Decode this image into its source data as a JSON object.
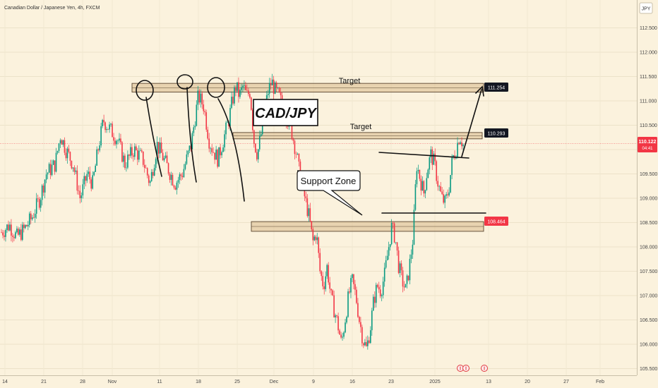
{
  "chart_data": {
    "type": "candlestick",
    "title": "Canadian Dollar / Japanese Yen, 4h, FXCM",
    "currency_badge": "JPY",
    "y_ticks": [
      "112.500",
      "112.000",
      "111.500",
      "111.000",
      "110.500",
      "110.000",
      "109.500",
      "109.000",
      "108.500",
      "108.000",
      "107.500",
      "107.000",
      "106.500",
      "106.000",
      "105.500"
    ],
    "y_range": [
      105.35,
      112.75
    ],
    "x_ticks": [
      "14",
      "21",
      "28",
      "Nov",
      "11",
      "18",
      "25",
      "Dec",
      "9",
      "16",
      "23",
      "2025",
      "13",
      "20",
      "27",
      "Feb"
    ],
    "current_price": "110.122",
    "countdown": "04:41",
    "annotations": {
      "pair_label": "CAD/JPY",
      "support_label": "Support Zone",
      "target1_label": "Target",
      "target2_label": "Target",
      "zones": [
        {
          "label": "111.254",
          "low": 111.18,
          "high": 111.36
        },
        {
          "label": "110.293",
          "low": 110.22,
          "high": 110.35
        },
        {
          "label": "108.464",
          "low": 108.32,
          "high": 108.52
        }
      ]
    },
    "grid": true,
    "legend": "none",
    "candles_path": [
      [
        0.0,
        108.3
      ],
      [
        4.5,
        108.45
      ],
      [
        8.5,
        108.2
      ],
      [
        12.5,
        108.35
      ],
      [
        17,
        108.6
      ],
      [
        21.5,
        109.0
      ],
      [
        25,
        109.5
      ],
      [
        30,
        109.7
      ],
      [
        33,
        110.3
      ],
      [
        36,
        110.0
      ],
      [
        40,
        109.7
      ],
      [
        44,
        109.0
      ],
      [
        48,
        109.5
      ],
      [
        51,
        109.3
      ],
      [
        54,
        110.0
      ],
      [
        57,
        110.6
      ],
      [
        61,
        110.4
      ],
      [
        65,
        110.2
      ],
      [
        69,
        109.7
      ],
      [
        74,
        110.0
      ],
      [
        79,
        109.8
      ],
      [
        83,
        109.3
      ],
      [
        87,
        110.1
      ],
      [
        92,
        109.7
      ],
      [
        97,
        109.3
      ],
      [
        101,
        109.5
      ],
      [
        106,
        110.1
      ],
      [
        110,
        111.1
      ],
      [
        113,
        110.9
      ],
      [
        116,
        110.2
      ],
      [
        118,
        110.0
      ],
      [
        121,
        109.8
      ],
      [
        124,
        110.2
      ],
      [
        127,
        110.6
      ],
      [
        129,
        111.0
      ],
      [
        131,
        111.3
      ],
      [
        133,
        111.1
      ],
      [
        135,
        111.3
      ],
      [
        137,
        111.1
      ],
      [
        139,
        111.2
      ],
      [
        141,
        110.2
      ],
      [
        143,
        109.9
      ],
      [
        146,
        110.5
      ],
      [
        149,
        111.2
      ],
      [
        151,
        111.4
      ],
      [
        153,
        111.2
      ],
      [
        155,
        111.1
      ],
      [
        157,
        110.9
      ],
      [
        160,
        110.6
      ],
      [
        162,
        110.4
      ],
      [
        165,
        109.9
      ],
      [
        167,
        109.4
      ],
      [
        169,
        109.1
      ],
      [
        172,
        108.6
      ],
      [
        174,
        108.1
      ],
      [
        176,
        108.3
      ],
      [
        178,
        107.5
      ],
      [
        180,
        107.2
      ],
      [
        182,
        107.6
      ],
      [
        184,
        107.0
      ],
      [
        186,
        106.7
      ],
      [
        188,
        106.4
      ],
      [
        190,
        106.0
      ],
      [
        192,
        106.5
      ],
      [
        194,
        107.0
      ],
      [
        196,
        107.3
      ],
      [
        198,
        107.0
      ],
      [
        200,
        106.5
      ],
      [
        202,
        106.1
      ],
      [
        204,
        105.9
      ],
      [
        206,
        106.3
      ],
      [
        208,
        106.9
      ],
      [
        210,
        107.2
      ],
      [
        212,
        107.1
      ],
      [
        214,
        107.4
      ],
      [
        216,
        107.9
      ],
      [
        218,
        108.4
      ],
      [
        220,
        108.2
      ],
      [
        222,
        107.6
      ],
      [
        224,
        107.3
      ],
      [
        226,
        107.1
      ],
      [
        228,
        107.6
      ],
      [
        230,
        108.2
      ],
      [
        232,
        109.7
      ],
      [
        234,
        109.4
      ],
      [
        236,
        109.1
      ],
      [
        238,
        109.6
      ],
      [
        240,
        109.9
      ],
      [
        242,
        109.7
      ],
      [
        244,
        109.3
      ],
      [
        246,
        109.0
      ],
      [
        248,
        108.9
      ],
      [
        250,
        109.2
      ],
      [
        252,
        109.8
      ],
      [
        254,
        110.0
      ],
      [
        256,
        110.3
      ],
      [
        258,
        110.1
      ]
    ]
  }
}
